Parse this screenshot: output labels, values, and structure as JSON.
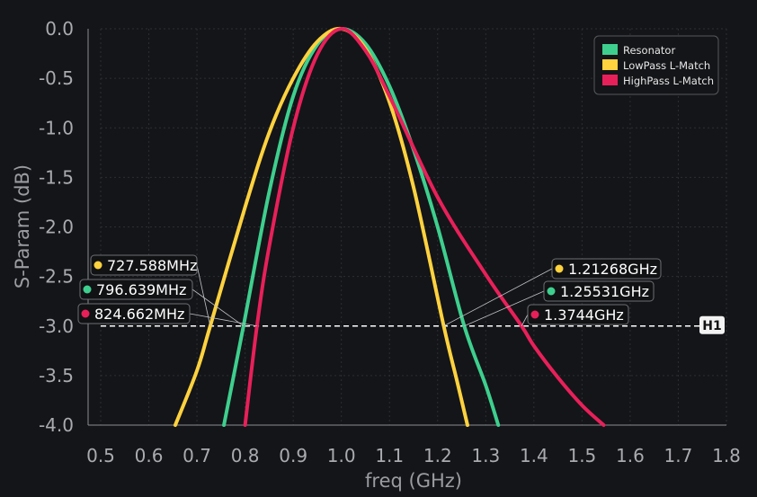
{
  "chart_data": {
    "type": "line",
    "xlabel": "freq (GHz)",
    "ylabel": "S-Param (dB)",
    "xlim": [
      0.5,
      1.8
    ],
    "ylim": [
      -4.0,
      0.0
    ],
    "xticks": [
      "0.5",
      "0.6",
      "0.7",
      "0.8",
      "0.9",
      "1.0",
      "1.1",
      "1.2",
      "1.3",
      "1.4",
      "1.5",
      "1.6",
      "1.7",
      "1.8"
    ],
    "yticks": [
      "0.0",
      "-0.5",
      "-1.0",
      "-1.5",
      "-2.0",
      "-2.5",
      "-3.0",
      "-3.5",
      "-4.0"
    ],
    "grid": true,
    "legend_position": "top-right",
    "series": [
      {
        "name": "Resonator",
        "color": "#3ecf8e",
        "x": [
          0.756,
          0.796639,
          0.85,
          0.9,
          0.95,
          1.0,
          1.05,
          1.1,
          1.15,
          1.2,
          1.25531,
          1.3,
          1.326
        ],
        "y": [
          -4.0,
          -3.0,
          -1.65,
          -0.68,
          -0.16,
          0.0,
          -0.15,
          -0.58,
          -1.22,
          -2.0,
          -3.0,
          -3.6,
          -4.0
        ]
      },
      {
        "name": "LowPass L-Match",
        "color": "#ffd23f",
        "x": [
          0.655,
          0.7,
          0.727588,
          0.8,
          0.85,
          0.9,
          0.95,
          1.0,
          1.05,
          1.1,
          1.15,
          1.21268,
          1.24,
          1.262
        ],
        "y": [
          -4.0,
          -3.45,
          -3.0,
          -1.8,
          -1.05,
          -0.5,
          -0.13,
          0.0,
          -0.2,
          -0.74,
          -1.6,
          -3.0,
          -3.55,
          -4.0
        ]
      },
      {
        "name": "HighPass L-Match",
        "color": "#e8205a",
        "x": [
          0.8,
          0.824662,
          0.85,
          0.9,
          0.95,
          1.0,
          1.05,
          1.1,
          1.2,
          1.3,
          1.3744,
          1.4,
          1.45,
          1.5,
          1.545
        ],
        "y": [
          -4.0,
          -3.0,
          -2.2,
          -1.0,
          -0.26,
          0.0,
          -0.22,
          -0.68,
          -1.7,
          -2.48,
          -3.0,
          -3.2,
          -3.52,
          -3.8,
          -4.0
        ]
      }
    ],
    "reference_line": {
      "label": "H1",
      "y": -3.0
    },
    "markers": [
      {
        "label": "727.588MHz",
        "series": "LowPass L-Match",
        "x": 0.727588,
        "y": -3.0
      },
      {
        "label": "796.639MHz",
        "series": "Resonator",
        "x": 0.796639,
        "y": -3.0
      },
      {
        "label": "824.662MHz",
        "series": "HighPass L-Match",
        "x": 0.824662,
        "y": -3.0
      },
      {
        "label": "1.21268GHz",
        "series": "LowPass L-Match",
        "x": 1.21268,
        "y": -3.0
      },
      {
        "label": "1.25531GHz",
        "series": "Resonator",
        "x": 1.25531,
        "y": -3.0
      },
      {
        "label": "1.3744GHz",
        "series": "HighPass L-Match",
        "x": 1.3744,
        "y": -3.0
      }
    ]
  }
}
